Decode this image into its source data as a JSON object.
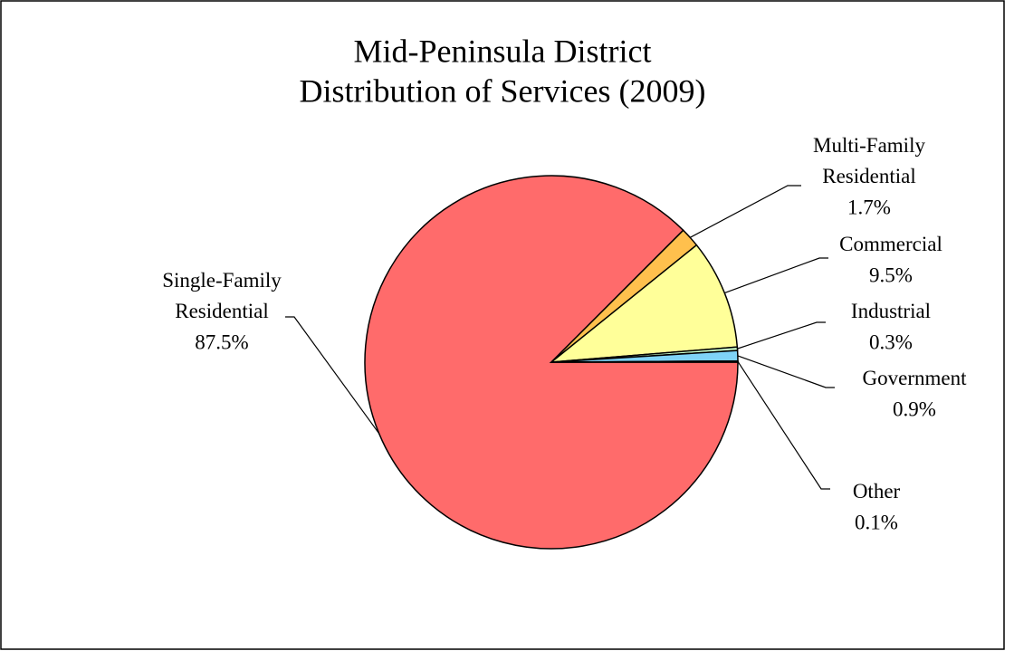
{
  "chart_data": {
    "type": "pie",
    "title": [
      "Mid-Peninsula District",
      "Distribution of Services (2009)"
    ],
    "categories": [
      "Single-Family Residential",
      "Multi-Family Residential",
      "Commercial",
      "Industrial",
      "Government",
      "Other"
    ],
    "values": [
      87.5,
      1.7,
      9.5,
      0.3,
      0.9,
      0.1
    ],
    "value_labels": [
      "87.5%",
      "1.7%",
      "9.5%",
      "0.3%",
      "0.9%",
      "0.1%"
    ],
    "colors": [
      "#ff6b6b",
      "#ffc04d",
      "#ffff99",
      "#ccffcc",
      "#7fd3f7",
      "#ccccff"
    ]
  }
}
